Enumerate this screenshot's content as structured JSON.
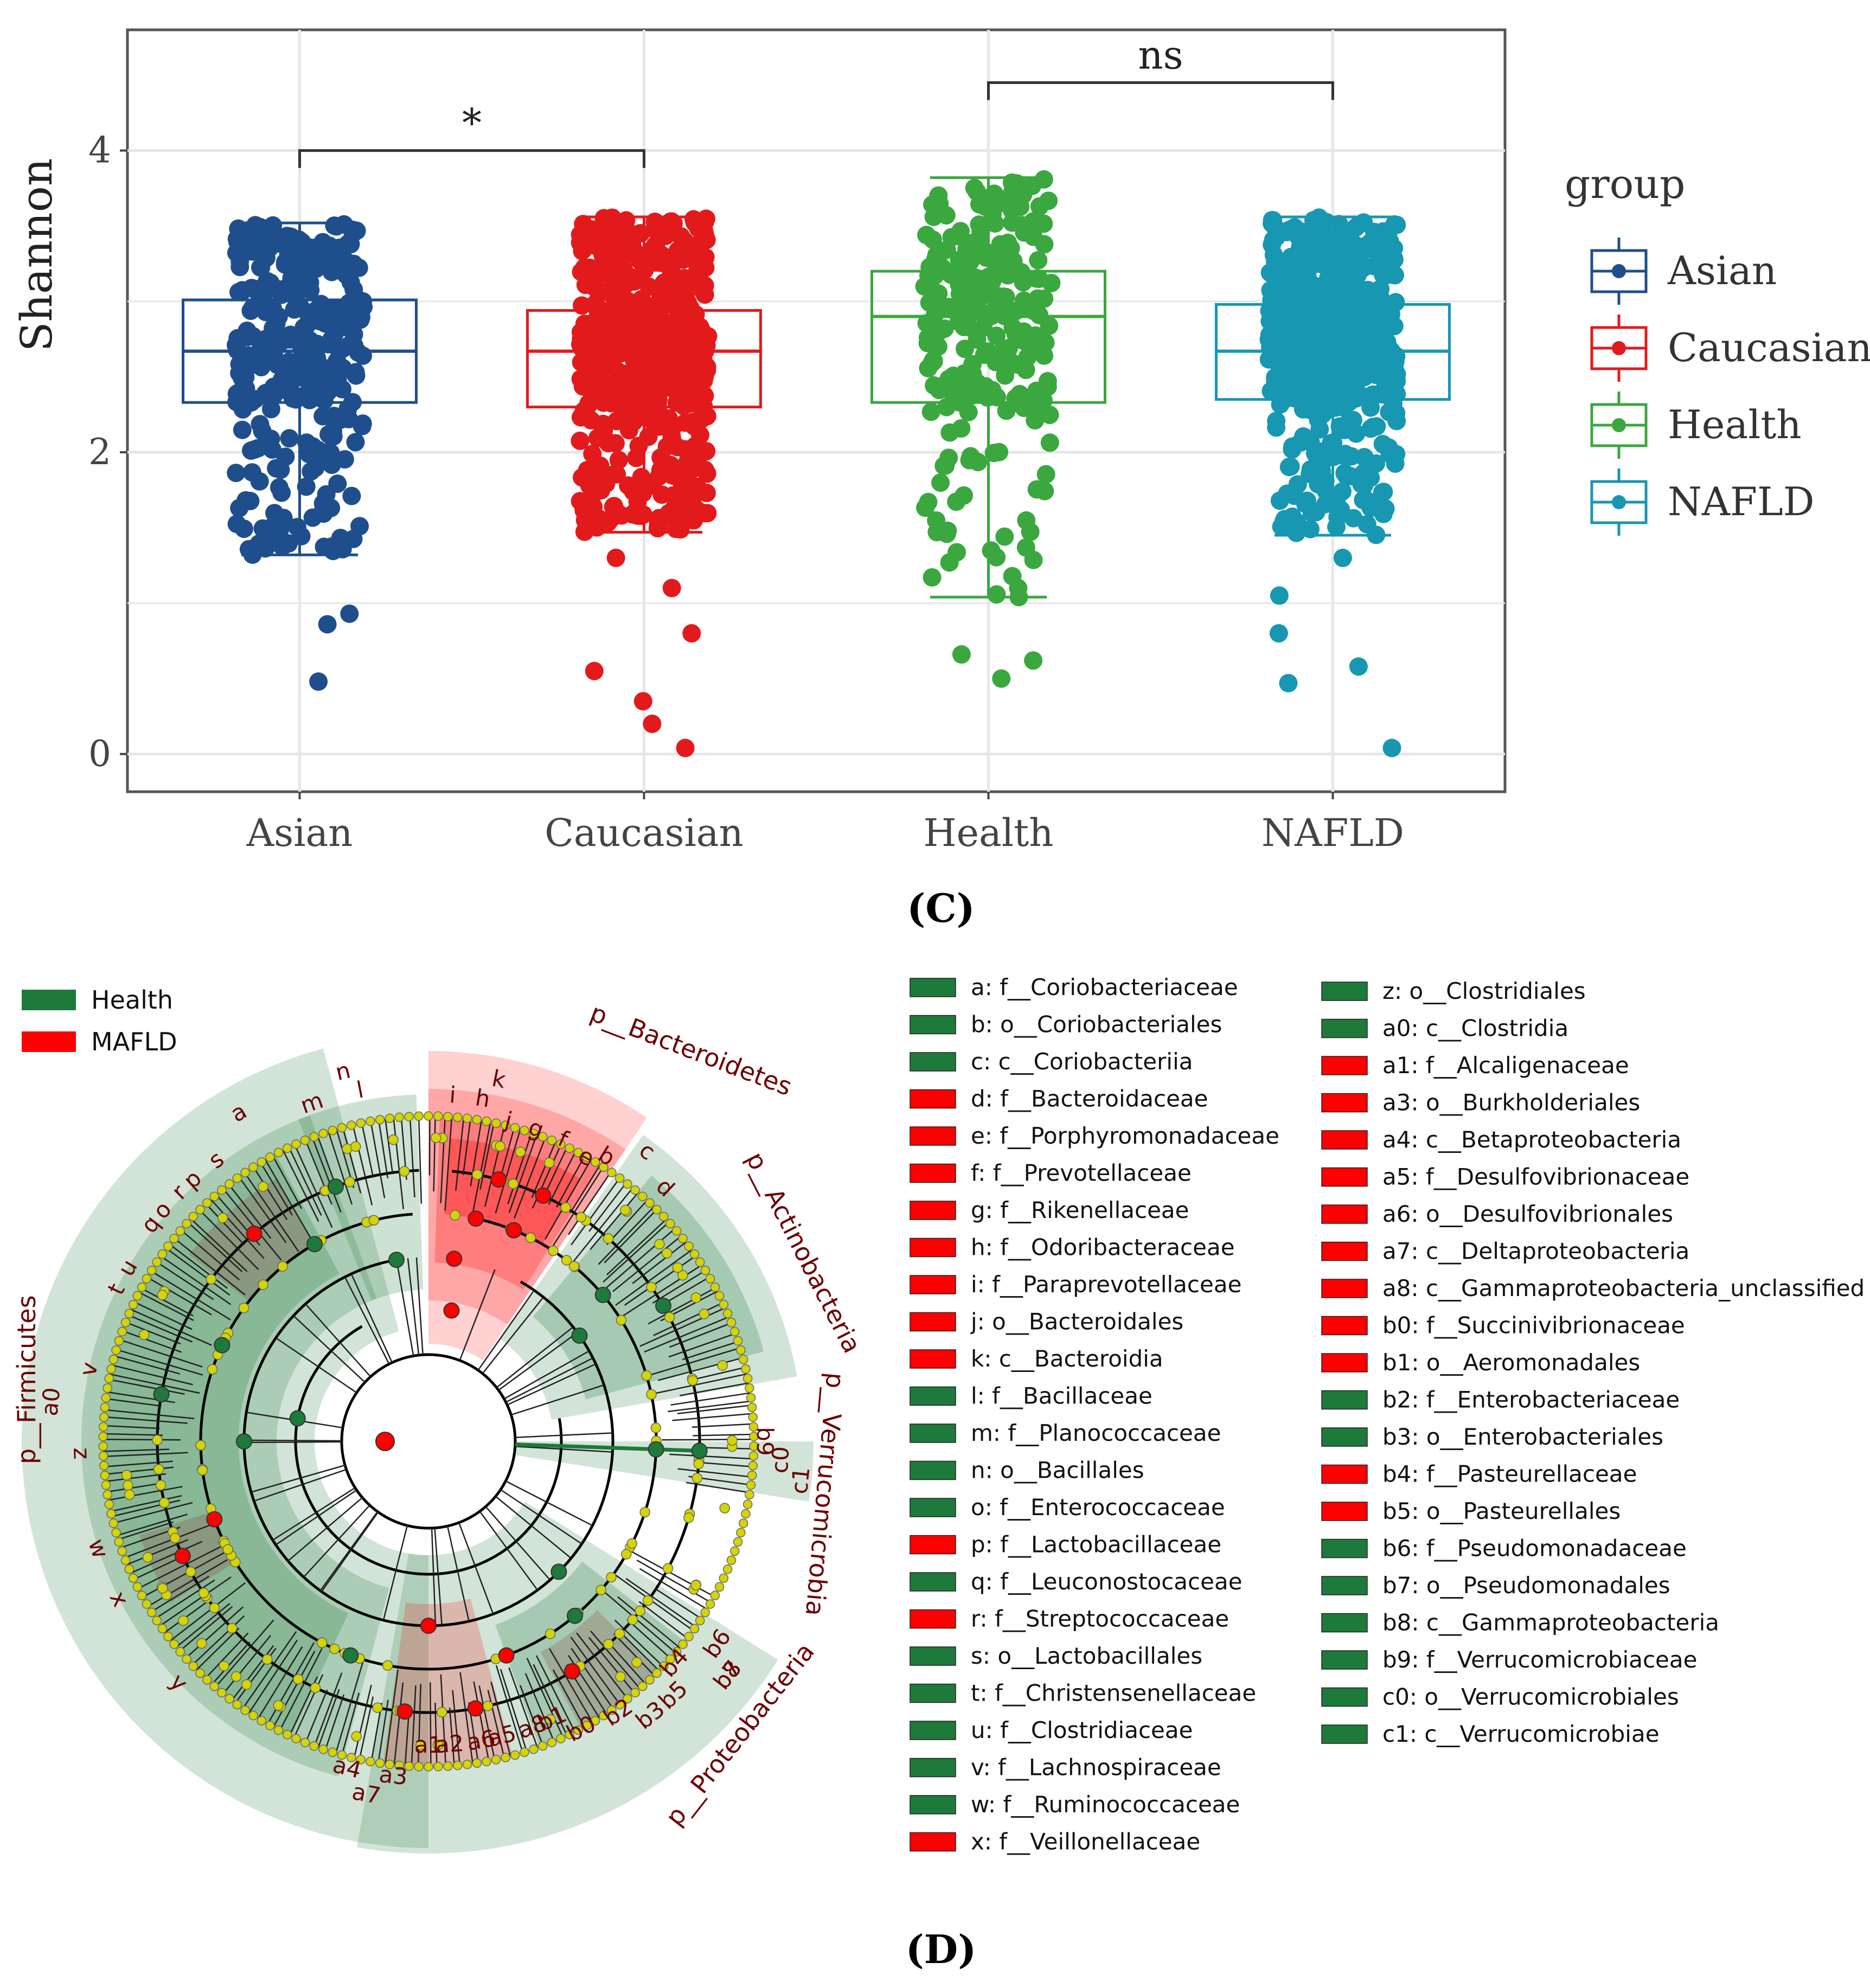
{
  "panel_c": {
    "label": "(C)",
    "legend_title": "group",
    "chart_data": {
      "type": "box",
      "ylabel": "Shannon",
      "xlabel": "",
      "ylim": [
        -0.25,
        4.8
      ],
      "yticks": [
        0,
        2,
        4
      ],
      "categories": [
        "Asian",
        "Caucasian",
        "Health",
        "NAFLD"
      ],
      "series": [
        {
          "name": "Asian",
          "color": "#1f4e8c",
          "min": 1.32,
          "q1": 2.33,
          "median": 2.67,
          "q3": 3.01,
          "max": 3.52,
          "outliers": [
            0.93,
            0.86,
            0.48
          ],
          "n_points": 320
        },
        {
          "name": "Caucasian",
          "color": "#e31a1c",
          "min": 1.47,
          "q1": 2.3,
          "median": 2.67,
          "q3": 2.94,
          "max": 3.56,
          "outliers": [
            1.3,
            1.1,
            0.8,
            0.55,
            0.35,
            0.2,
            0.04
          ],
          "n_points": 520
        },
        {
          "name": "Health",
          "color": "#3aa83e",
          "min": 1.04,
          "q1": 2.33,
          "median": 2.9,
          "q3": 3.2,
          "max": 3.82,
          "outliers": [
            0.66,
            0.62,
            0.5
          ],
          "n_points": 250
        },
        {
          "name": "NAFLD",
          "color": "#1797b2",
          "min": 1.45,
          "q1": 2.35,
          "median": 2.67,
          "q3": 2.98,
          "max": 3.56,
          "outliers": [
            1.3,
            1.05,
            0.8,
            0.58,
            0.47,
            0.04
          ],
          "n_points": 540
        }
      ],
      "significance": [
        {
          "from": "Asian",
          "to": "Caucasian",
          "label": "*",
          "y": 4.0
        },
        {
          "from": "Health",
          "to": "NAFLD",
          "label": "ns",
          "y": 4.45
        }
      ],
      "legend_position": "right"
    }
  },
  "panel_d": {
    "label": "(D)",
    "legend": [
      {
        "name": "Health",
        "color": "#1e7a3a"
      },
      {
        "name": "MAFLD",
        "color": "#ff0000"
      }
    ],
    "clade_labels": [
      "p__Bacteroidetes",
      "p__Actinobacteria",
      "p__Verrucomicrobia",
      "p__Proteobacteria",
      "p__Firmicutes"
    ],
    "ring_letters": [
      "n",
      "m",
      "l",
      "k",
      "i",
      "h",
      "j",
      "g",
      "f",
      "e",
      "d",
      "c",
      "b",
      "a",
      "s",
      "p",
      "o",
      "r",
      "q",
      "u",
      "t",
      "v",
      "z",
      "a0",
      "w",
      "x",
      "y",
      "c1",
      "c0",
      "b9",
      "b6",
      "b7",
      "b4",
      "b5",
      "b8",
      "b2",
      "b3",
      "b0",
      "b1",
      "a8",
      "a5",
      "a6",
      "a2",
      "a1",
      "a3",
      "a4",
      "a7"
    ],
    "features_left": [
      {
        "text": "a: f__Coriobacteriaceae",
        "group": "Health"
      },
      {
        "text": "b: o__Coriobacteriales",
        "group": "Health"
      },
      {
        "text": "c: c__Coriobacteriia",
        "group": "Health"
      },
      {
        "text": "d: f__Bacteroidaceae",
        "group": "MAFLD"
      },
      {
        "text": "e: f__Porphyromonadaceae",
        "group": "MAFLD"
      },
      {
        "text": "f: f__Prevotellaceae",
        "group": "MAFLD"
      },
      {
        "text": "g: f__Rikenellaceae",
        "group": "MAFLD"
      },
      {
        "text": "h: f__Odoribacteraceae",
        "group": "MAFLD"
      },
      {
        "text": "i: f__Paraprevotellaceae",
        "group": "MAFLD"
      },
      {
        "text": "j: o__Bacteroidales",
        "group": "MAFLD"
      },
      {
        "text": "k: c__Bacteroidia",
        "group": "MAFLD"
      },
      {
        "text": "l: f__Bacillaceae",
        "group": "Health"
      },
      {
        "text": "m: f__Planococcaceae",
        "group": "Health"
      },
      {
        "text": "n: o__Bacillales",
        "group": "Health"
      },
      {
        "text": "o: f__Enterococcaceae",
        "group": "Health"
      },
      {
        "text": "p: f__Lactobacillaceae",
        "group": "MAFLD"
      },
      {
        "text": "q: f__Leuconostocaceae",
        "group": "Health"
      },
      {
        "text": "r: f__Streptococcaceae",
        "group": "MAFLD"
      },
      {
        "text": "s: o__Lactobacillales",
        "group": "Health"
      },
      {
        "text": "t: f__Christensenellaceae",
        "group": "Health"
      },
      {
        "text": "u: f__Clostridiaceae",
        "group": "Health"
      },
      {
        "text": "v: f__Lachnospiraceae",
        "group": "Health"
      },
      {
        "text": "w: f__Ruminococcaceae",
        "group": "Health"
      },
      {
        "text": "x: f__Veillonellaceae",
        "group": "MAFLD"
      }
    ],
    "features_right": [
      {
        "text": "z: o__Clostridiales",
        "group": "Health"
      },
      {
        "text": "a0: c__Clostridia",
        "group": "Health"
      },
      {
        "text": "a1: f__Alcaligenaceae",
        "group": "MAFLD"
      },
      {
        "text": "a3: o__Burkholderiales",
        "group": "MAFLD"
      },
      {
        "text": "a4: c__Betaproteobacteria",
        "group": "MAFLD"
      },
      {
        "text": "a5: f__Desulfovibrionaceae",
        "group": "MAFLD"
      },
      {
        "text": "a6: o__Desulfovibrionales",
        "group": "MAFLD"
      },
      {
        "text": "a7: c__Deltaproteobacteria",
        "group": "MAFLD"
      },
      {
        "text": "a8: c__Gammaproteobacteria_unclassified",
        "group": "MAFLD"
      },
      {
        "text": "b0: f__Succinivibrionaceae",
        "group": "MAFLD"
      },
      {
        "text": "b1: o__Aeromonadales",
        "group": "MAFLD"
      },
      {
        "text": "b2: f__Enterobacteriaceae",
        "group": "Health"
      },
      {
        "text": "b3: o__Enterobacteriales",
        "group": "Health"
      },
      {
        "text": "b4: f__Pasteurellaceae",
        "group": "MAFLD"
      },
      {
        "text": "b5: o__Pasteurellales",
        "group": "MAFLD"
      },
      {
        "text": "b6: f__Pseudomonadaceae",
        "group": "Health"
      },
      {
        "text": "b7: o__Pseudomonadales",
        "group": "Health"
      },
      {
        "text": "b8: c__Gammaproteobacteria",
        "group": "Health"
      },
      {
        "text": "b9: f__Verrucomicrobiaceae",
        "group": "Health"
      },
      {
        "text": "c0: o__Verrucomicrobiales",
        "group": "Health"
      },
      {
        "text": "c1: c__Verrucomicrobiae",
        "group": "Health"
      }
    ]
  }
}
